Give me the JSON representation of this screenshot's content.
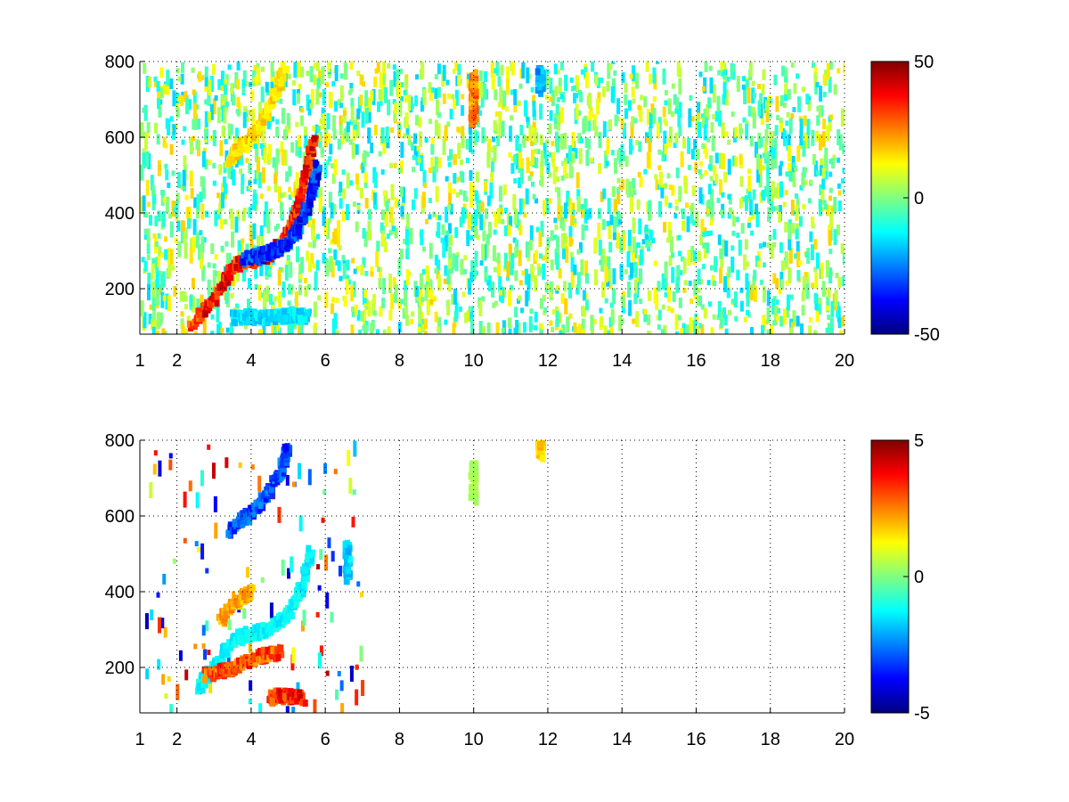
{
  "chart_data": [
    {
      "type": "heatmap",
      "title": "",
      "xlabel": "",
      "ylabel": "",
      "xlim": [
        1,
        20
      ],
      "ylim": [
        80,
        800
      ],
      "grid": true,
      "xticks": [
        1,
        2,
        4,
        6,
        8,
        10,
        12,
        14,
        16,
        18,
        20
      ],
      "xtick_labels": [
        "1",
        "2",
        "4",
        "6",
        "8",
        "10",
        "12",
        "14",
        "16",
        "18",
        "20"
      ],
      "yticks": [
        200,
        400,
        600,
        800
      ],
      "ytick_labels": [
        "200",
        "400",
        "600",
        "800"
      ],
      "colormap": "jet",
      "colorbar": {
        "min": -50,
        "max": 50,
        "ticks": [
          50,
          0,
          -50
        ],
        "tick_labels": [
          "50",
          "0",
          "-50"
        ],
        "placement": "right"
      },
      "features": [
        {
          "x": [
            2.4,
            3.0,
            3.5,
            4.0,
            4.5,
            5.0,
            5.3,
            5.5,
            5.7
          ],
          "y": [
            110,
            170,
            260,
            275,
            290,
            340,
            420,
            500,
            600
          ],
          "value": 42
        },
        {
          "x": [
            3.8,
            4.2,
            4.6,
            5.0,
            5.3,
            5.6,
            5.8
          ],
          "y": [
            280,
            285,
            300,
            320,
            360,
            440,
            520
          ],
          "value": -40
        },
        {
          "x": [
            3.4,
            3.8,
            4.2,
            4.6,
            4.9
          ],
          "y": [
            540,
            580,
            620,
            700,
            780
          ],
          "value": 18
        },
        {
          "x": [
            3.5,
            4.0,
            4.5,
            5.0,
            5.5
          ],
          "y": [
            125,
            125,
            125,
            130,
            125
          ],
          "value": -18
        },
        {
          "x": [
            10.0,
            10.0,
            10.0
          ],
          "y": [
            640,
            700,
            760
          ],
          "value": 30
        },
        {
          "x": [
            11.8,
            11.8
          ],
          "y": [
            730,
            780
          ],
          "value": -25
        }
      ]
    },
    {
      "type": "heatmap",
      "title": "",
      "xlabel": "",
      "ylabel": "",
      "xlim": [
        1,
        20
      ],
      "ylim": [
        80,
        800
      ],
      "grid": true,
      "xticks": [
        1,
        2,
        4,
        6,
        8,
        10,
        12,
        14,
        16,
        18,
        20
      ],
      "xtick_labels": [
        "1",
        "2",
        "4",
        "6",
        "8",
        "10",
        "12",
        "14",
        "16",
        "18",
        "20"
      ],
      "yticks": [
        200,
        400,
        600,
        800
      ],
      "ytick_labels": [
        "200",
        "400",
        "600",
        "800"
      ],
      "colormap": "jet",
      "colorbar": {
        "min": -5,
        "max": 5,
        "ticks": [
          5,
          0,
          -5
        ],
        "tick_labels": [
          "5",
          "0",
          "-5"
        ],
        "placement": "right"
      },
      "features": [
        {
          "x": [
            2.6,
            3.0,
            3.5,
            4.0,
            4.5,
            5.0,
            5.4,
            5.6
          ],
          "y": [
            150,
            200,
            270,
            290,
            300,
            340,
            420,
            500
          ],
          "value": -1.5
        },
        {
          "x": [
            3.2,
            3.6,
            4.0
          ],
          "y": [
            330,
            370,
            400
          ],
          "value": 2.5
        },
        {
          "x": [
            2.8,
            3.3,
            3.8,
            4.3,
            4.8
          ],
          "y": [
            180,
            190,
            210,
            230,
            240
          ],
          "value": 3.5
        },
        {
          "x": [
            3.4,
            3.9,
            4.4,
            4.8,
            5.0
          ],
          "y": [
            560,
            600,
            650,
            720,
            780
          ],
          "value": -3.5
        },
        {
          "x": [
            4.5,
            4.9,
            5.4
          ],
          "y": [
            120,
            125,
            120
          ],
          "value": 4
        },
        {
          "x": [
            6.6,
            6.6
          ],
          "y": [
            440,
            520
          ],
          "value": -2
        },
        {
          "x": [
            10.0,
            10.0
          ],
          "y": [
            640,
            740
          ],
          "value": 0.5
        },
        {
          "x": [
            11.8
          ],
          "y": [
            760
          ],
          "value": 2
        }
      ]
    }
  ]
}
